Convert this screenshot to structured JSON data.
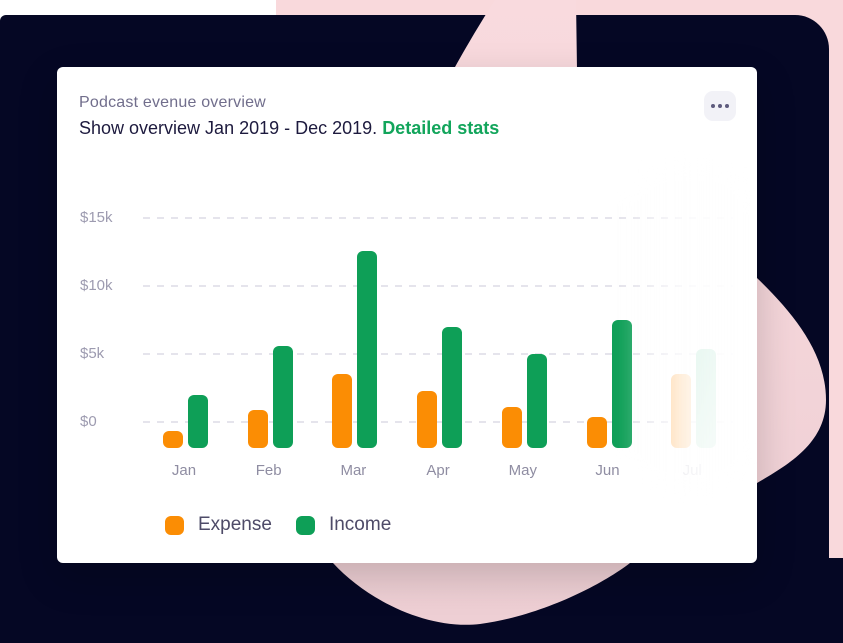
{
  "card": {
    "title": "Podcast evenue overview",
    "subtitle": "Show overview Jan 2019 - Dec 2019.",
    "subtitle_link": "Detailed stats",
    "menu_icon": "ellipsis-icon"
  },
  "chart_data": {
    "type": "bar",
    "title": "Podcast evenue overview",
    "subtitle": "Show overview Jan 2019 - Dec 2019.",
    "categories": [
      "Jan",
      "Feb",
      "Mar",
      "Apr",
      "May",
      "Jun",
      "Jul"
    ],
    "series": [
      {
        "name": "Expense",
        "color": "#FB8D04",
        "values_k": [
          -0.65,
          0.9,
          3.5,
          2.3,
          1.1,
          0.4,
          3.5
        ]
      },
      {
        "name": "Income",
        "color": "#0E9F57",
        "values_k": [
          2.0,
          5.6,
          12.6,
          7.0,
          5.0,
          7.5,
          5.4
        ]
      }
    ],
    "unit": "USD thousands",
    "y_ticks": [
      "$15k",
      "$10k",
      "$5k",
      "$0"
    ],
    "y_tick_values_k": [
      15,
      10,
      5,
      0
    ],
    "ylim_k": [
      -1.9,
      16.5
    ],
    "bar_base_k": -1.9,
    "grid": "horizontal dashed",
    "legend_position": "bottom-left",
    "faded_category": "Jul",
    "faded_colors": {
      "expense": "#FFB869",
      "income_top": "#63C89E",
      "income_bottom": "#A5DCC3",
      "month_label": "#BAB8C6"
    }
  },
  "colors": {
    "background_navy": "#050724",
    "background_pink": "#F9D9DC",
    "background_pink_front": "#F5D4D8",
    "card_bg": "#FFFFFF",
    "title": "#716E8C",
    "subtitle": "#1D1A3E",
    "link_green": "#12A55B",
    "grid": "#E5E4EC",
    "y_label": "#9D9BB0",
    "x_label": "#8F8DA2",
    "legend_label": "#4E4B68",
    "menu_dots": "#5E5B7D"
  }
}
